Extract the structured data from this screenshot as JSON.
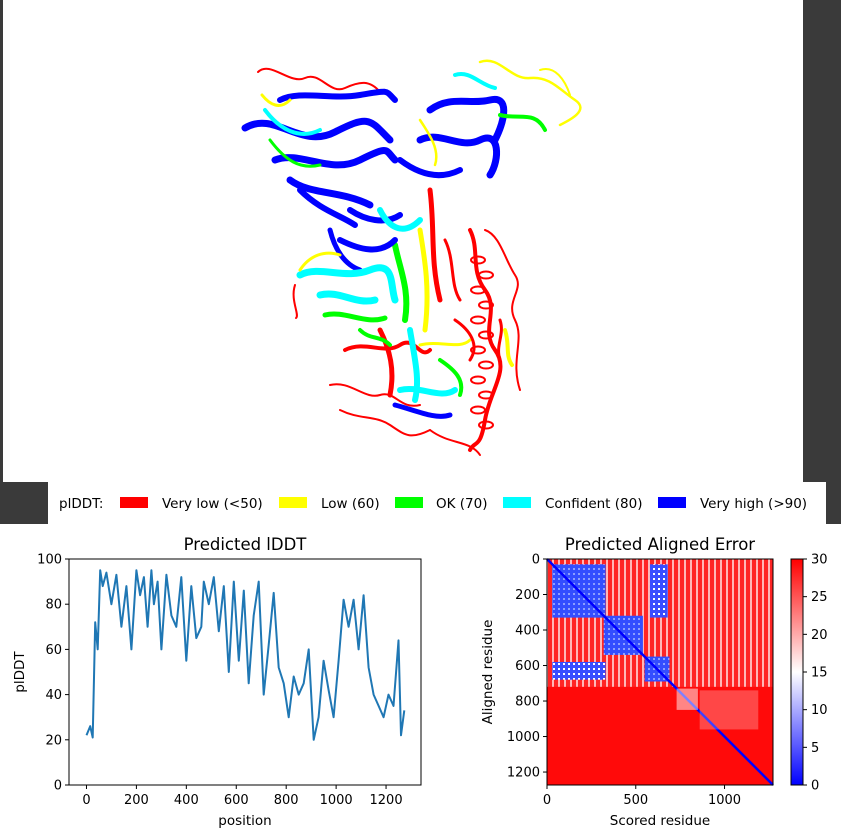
{
  "colors": {
    "very_low": "#ff0000",
    "low": "#ffff00",
    "ok": "#00ff00",
    "confident": "#00ffff",
    "very_high": "#0000ff",
    "line": "#1f77b4"
  },
  "legend": {
    "title": "plDDT:",
    "items": [
      {
        "label": "Very low (<50)",
        "color": "#ff0000"
      },
      {
        "label": "Low (60)",
        "color": "#ffff00"
      },
      {
        "label": "OK (70)",
        "color": "#00ff00"
      },
      {
        "label": "Confident (80)",
        "color": "#00ffff"
      },
      {
        "label": "Very high (>90)",
        "color": "#0000ff"
      }
    ]
  },
  "structure_icon": "protein-ribbon-structure",
  "chart_data": [
    {
      "type": "line",
      "title": "Predicted lDDT",
      "xlabel": "position",
      "ylabel": "plDDT",
      "xlim": [
        -70,
        1340
      ],
      "ylim": [
        0,
        100
      ],
      "xticks": [
        0,
        200,
        400,
        600,
        800,
        1000,
        1200
      ],
      "yticks": [
        0,
        20,
        40,
        60,
        80,
        100
      ],
      "grid": false,
      "series": [
        {
          "x": [
            0,
            15,
            25,
            35,
            45,
            55,
            65,
            80,
            100,
            120,
            140,
            160,
            180,
            200,
            215,
            230,
            245,
            260,
            270,
            285,
            300,
            320,
            340,
            360,
            380,
            400,
            420,
            440,
            460,
            470,
            490,
            510,
            530,
            550,
            570,
            590,
            610,
            630,
            650,
            670,
            690,
            710,
            730,
            750,
            770,
            790,
            810,
            830,
            850,
            870,
            890,
            910,
            930,
            950,
            970,
            990,
            1010,
            1030,
            1050,
            1070,
            1090,
            1110,
            1130,
            1150,
            1170,
            1190,
            1210,
            1230,
            1250,
            1260,
            1273
          ],
          "y": [
            22,
            26,
            21,
            72,
            60,
            95,
            88,
            94,
            80,
            93,
            70,
            88,
            60,
            95,
            84,
            92,
            70,
            95,
            80,
            90,
            60,
            93,
            75,
            70,
            92,
            55,
            88,
            65,
            70,
            90,
            80,
            92,
            68,
            88,
            50,
            90,
            55,
            86,
            45,
            75,
            90,
            40,
            62,
            85,
            52,
            45,
            30,
            48,
            40,
            45,
            60,
            20,
            30,
            55,
            42,
            30,
            55,
            82,
            70,
            82,
            60,
            84,
            52,
            40,
            35,
            30,
            40,
            35,
            64,
            22,
            33
          ]
        }
      ]
    },
    {
      "type": "heatmap",
      "title": "Predicted Aligned Error",
      "xlabel": "Scored residue",
      "ylabel": "Aligned residue",
      "n_residues": 1273,
      "xticks": [
        0,
        500,
        1000
      ],
      "yticks": [
        0,
        200,
        400,
        600,
        800,
        1000,
        1200
      ],
      "colorbar": {
        "min": 0,
        "max": 30,
        "ticks": [
          0,
          5,
          10,
          15,
          20,
          25,
          30
        ],
        "colors": [
          "#0000ff",
          "#ffffff",
          "#ff0000"
        ]
      },
      "domains": [
        {
          "start": 30,
          "end": 330
        },
        {
          "start": 320,
          "end": 540
        },
        {
          "start": 550,
          "end": 690
        }
      ],
      "blue_blocks": [
        {
          "r": [
            30,
            330
          ],
          "c": [
            30,
            330
          ]
        },
        {
          "r": [
            320,
            540
          ],
          "c": [
            320,
            540
          ]
        },
        {
          "r": [
            550,
            690
          ],
          "c": [
            550,
            690
          ]
        },
        {
          "r": [
            580,
            680
          ],
          "c": [
            30,
            330
          ]
        },
        {
          "r": [
            30,
            330
          ],
          "c": [
            580,
            680
          ]
        }
      ]
    }
  ]
}
